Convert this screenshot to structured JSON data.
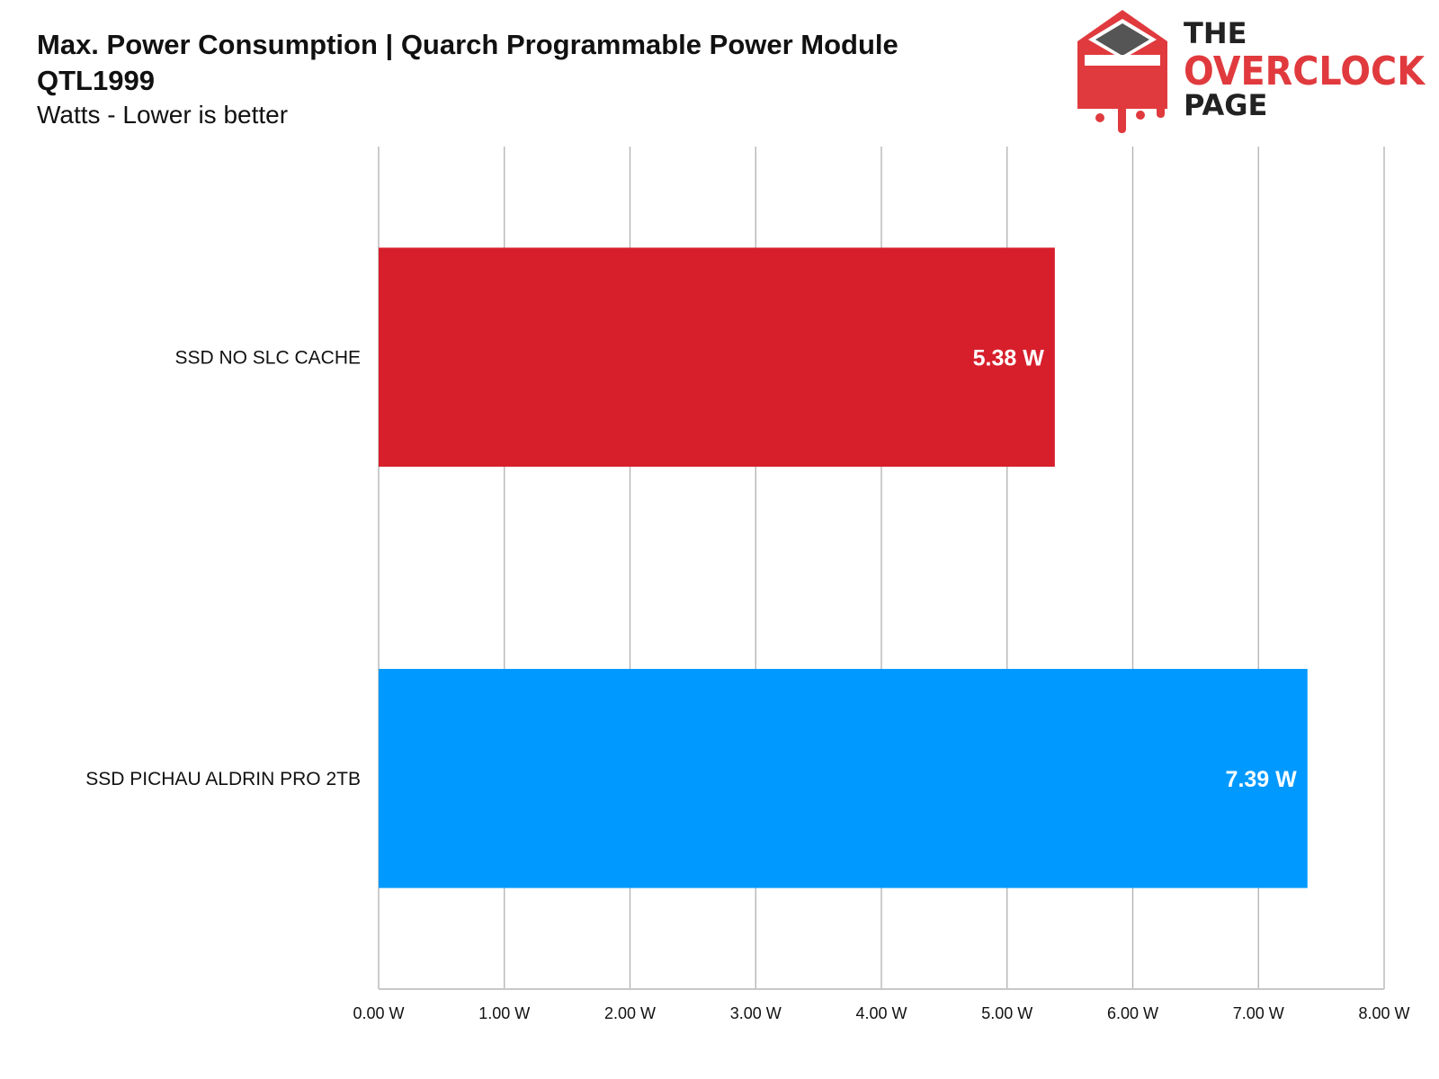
{
  "chart_data": {
    "type": "bar",
    "orientation": "horizontal",
    "title": "Max. Power Consumption | Quarch Programmable Power Module QTL1999",
    "subtitle": "Watts - Lower is better",
    "categories": [
      "SSD NO SLC CACHE",
      "SSD PICHAU ALDRIN PRO 2TB"
    ],
    "values": [
      5.38,
      7.39
    ],
    "value_labels": [
      "5.38 W",
      "7.39 W"
    ],
    "colors": [
      "#d71f2b",
      "#0099ff"
    ],
    "xlim": [
      0,
      8
    ],
    "xticks": [
      "0.00 W",
      "1.00 W",
      "2.00 W",
      "3.00 W",
      "4.00 W",
      "5.00 W",
      "6.00 W",
      "7.00 W",
      "8.00 W"
    ],
    "grid": true,
    "xlabel": "",
    "ylabel": ""
  },
  "logo": {
    "line1": "THE",
    "line2": "OVERCLOCK",
    "line3": "PAGE"
  }
}
